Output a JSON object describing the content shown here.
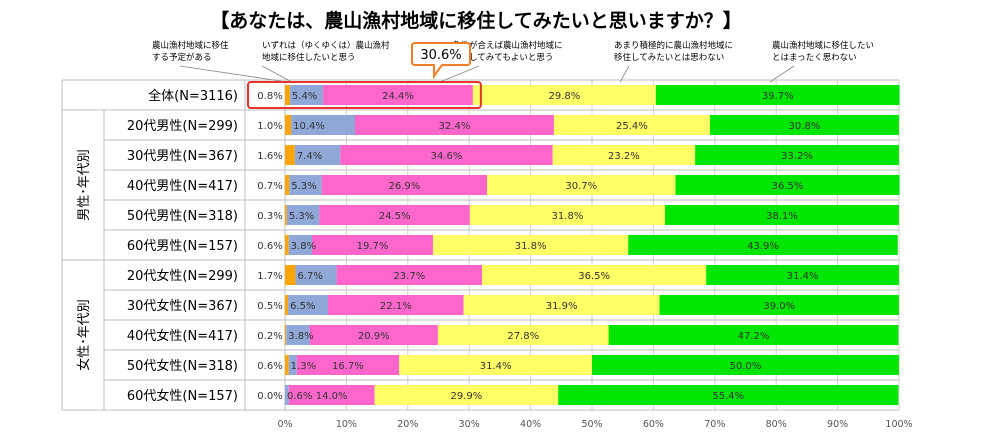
{
  "chart_data": {
    "type": "bar",
    "orientation": "horizontal-stacked-100",
    "title": "【あなたは、農山漁村地域に移住してみたいと思いますか？】",
    "categories": [
      "全体(N=3116)",
      "20代男性(N=299)",
      "30代男性(N=367)",
      "40代男性(N=417)",
      "50代男性(N=318)",
      "60代男性(N=157)",
      "20代女性(N=299)",
      "30代女性(N=367)",
      "40代女性(N=417)",
      "50代女性(N=318)",
      "60代女性(N=157)"
    ],
    "groups": [
      {
        "label": "男性･年代別",
        "rows": [
          1,
          5
        ]
      },
      {
        "label": "女性･年代別",
        "rows": [
          6,
          10
        ]
      }
    ],
    "series": [
      {
        "name": "農山漁村地域に移住する予定がある",
        "color": "#FFA500",
        "values": [
          0.8,
          1.0,
          1.6,
          0.7,
          0.3,
          0.6,
          1.7,
          0.5,
          0.2,
          0.6,
          0.0
        ],
        "labels": [
          "0.8%",
          "1.0%",
          "1.6%",
          "0.7%",
          "0.3%",
          "0.6%",
          "1.7%",
          "0.5%",
          "0.2%",
          "0.6%",
          "0.0%"
        ]
      },
      {
        "name": "いずれは（ゆくゆくは）農山漁村地域に移住したいと思う",
        "color": "#8FA8D8",
        "values": [
          5.4,
          10.4,
          7.4,
          5.3,
          5.3,
          3.8,
          6.7,
          6.5,
          3.8,
          1.3,
          0.6
        ],
        "labels": [
          "5.4%",
          "10.4%",
          "7.4%",
          "5.3%",
          "5.3%",
          "3.8%",
          "6.7%",
          "6.5%",
          "3.8%",
          "1.3%",
          "0.6%"
        ]
      },
      {
        "name": "条件が合えば農山漁村地域に移住してみてもよいと思う",
        "color": "#FF66CC",
        "values": [
          24.4,
          32.4,
          34.6,
          26.9,
          24.5,
          19.7,
          23.7,
          22.1,
          20.9,
          16.7,
          14.0
        ],
        "labels": [
          "24.4%",
          "32.4%",
          "34.6%",
          "26.9%",
          "24.5%",
          "19.7%",
          "23.7%",
          "22.1%",
          "20.9%",
          "16.7%",
          "14.0%"
        ]
      },
      {
        "name": "あまり積極的に農山漁村地域に移住してみたいとは思わない",
        "color": "#FFFF66",
        "values": [
          29.8,
          25.4,
          23.2,
          30.7,
          31.8,
          31.8,
          36.5,
          31.9,
          27.8,
          31.4,
          29.9
        ],
        "labels": [
          "29.8%",
          "25.4%",
          "23.2%",
          "30.7%",
          "31.8%",
          "31.8%",
          "36.5%",
          "31.9%",
          "27.8%",
          "31.4%",
          "29.9%"
        ]
      },
      {
        "name": "農山漁村地域に移住したいとはまったく思わない",
        "color": "#00E600",
        "values": [
          39.7,
          30.8,
          33.2,
          36.5,
          38.1,
          43.9,
          31.4,
          39.0,
          47.2,
          50.0,
          55.4
        ],
        "labels": [
          "39.7%",
          "30.8%",
          "33.2%",
          "36.5%",
          "38.1%",
          "43.9%",
          "31.4%",
          "39.0%",
          "47.2%",
          "50.0%",
          "55.4%"
        ]
      }
    ],
    "legend": [
      "農山漁村地域に移住\nする予定がある",
      "いずれは（ゆくゆくは）農山漁村\n地域に移住したいと思う",
      "条件が合えば農山漁村地域に\n移住してみてもよいと思う",
      "あまり積極的に農山漁村地域に\n移住してみたいとは思わない",
      "農山漁村地域に移住したい\nとはまったく思わない"
    ],
    "legend_placement": "top",
    "callout": "30.6%",
    "xlim": [
      0,
      100
    ],
    "xticks": [
      "0%",
      "10%",
      "20%",
      "30%",
      "40%",
      "50%",
      "60%",
      "70%",
      "80%",
      "90%",
      "100%"
    ],
    "grid": true
  }
}
